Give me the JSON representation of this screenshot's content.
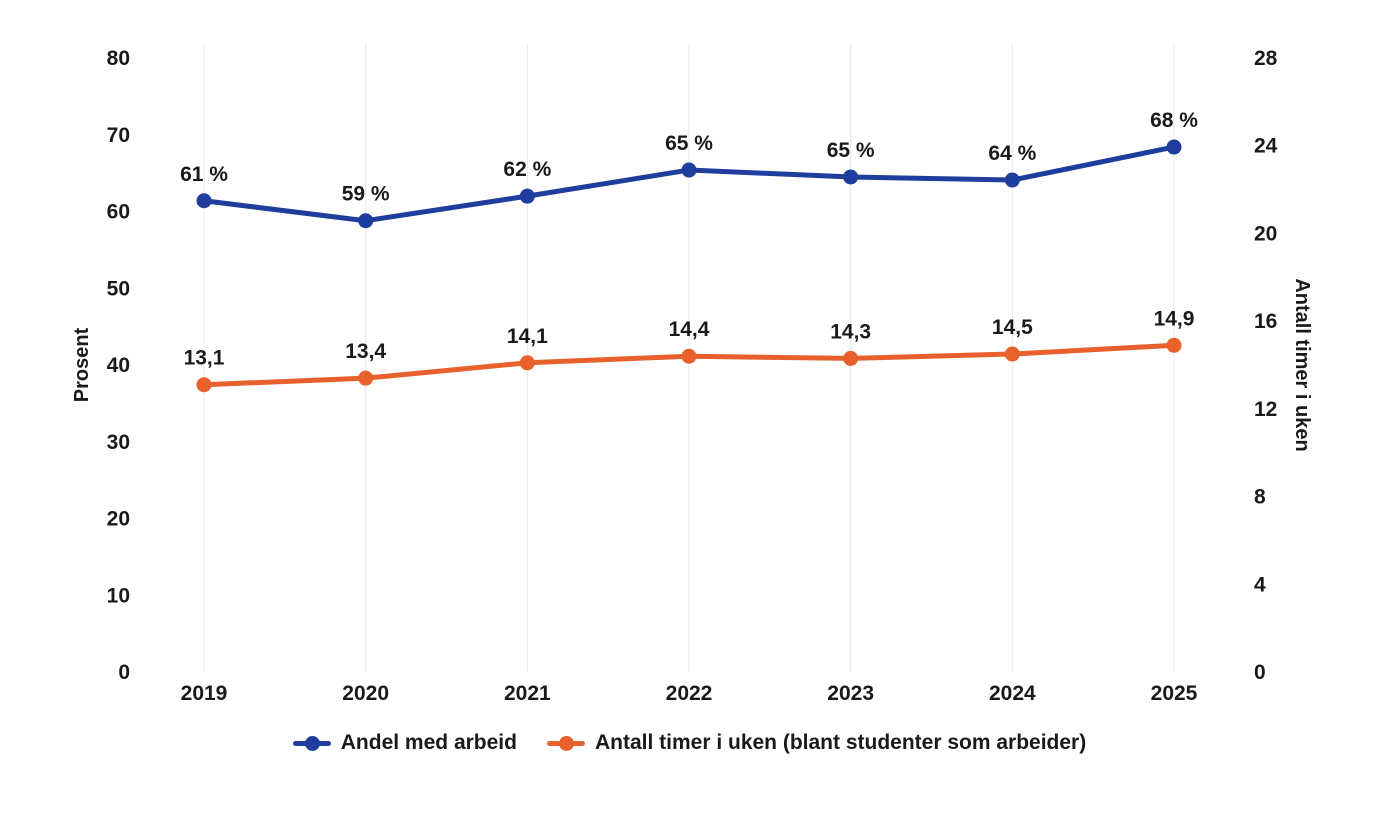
{
  "chart_data": {
    "type": "line",
    "x": [
      2019,
      2020,
      2021,
      2022,
      2023,
      2024,
      2025
    ],
    "series": [
      {
        "name": "Andel med arbeid",
        "axis": "left",
        "color": "#1f3d9c",
        "values": [
          61.4,
          58.8,
          62.0,
          65.4,
          64.5,
          64.1,
          68.4
        ],
        "labels": [
          "61 %",
          "59 %",
          "62 %",
          "65 %",
          "65 %",
          "64 %",
          "68 %"
        ]
      },
      {
        "name": "Antall timer i uken (blant studenter som arbeider)",
        "axis": "right",
        "color": "#e8612c",
        "values": [
          13.1,
          13.4,
          14.1,
          14.4,
          14.3,
          14.5,
          14.9
        ],
        "labels": [
          "13,1",
          "13,4",
          "14,1",
          "14,4",
          "14,3",
          "14,5",
          "14,9"
        ]
      }
    ],
    "left_axis": {
      "title": "Prosent",
      "min": 0,
      "max": 80,
      "tick_step": 10,
      "ticks": [
        0,
        10,
        20,
        30,
        40,
        50,
        60,
        70,
        80
      ]
    },
    "right_axis": {
      "title": "Antall timer i uken",
      "min": 0,
      "max": 28,
      "tick_step": 4,
      "ticks": [
        0,
        4,
        8,
        12,
        16,
        20,
        24,
        28
      ]
    },
    "grid": "vertical-light",
    "legend_position": "bottom",
    "colors": {
      "grid": "#e8e8e8",
      "text": "#1a1a1a",
      "background": "#ffffff"
    }
  }
}
